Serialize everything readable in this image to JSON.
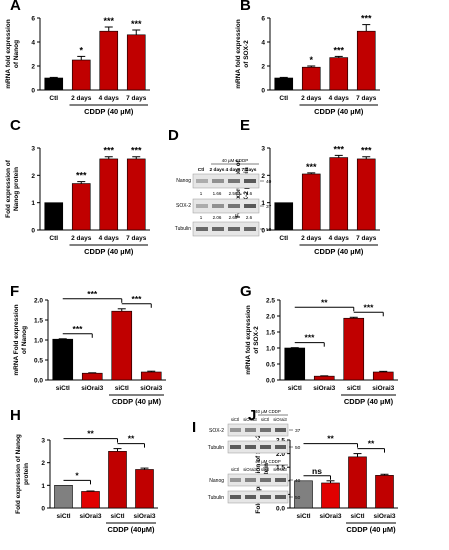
{
  "figure": {
    "colors": {
      "ctl": "#000000",
      "cddp": "#c00000",
      "grey_bar": "#808080",
      "red_bar": "#e00000",
      "maroon": "#8a1010",
      "accent_dark": "#5a0808",
      "blot_bg": "#e6e6e6"
    }
  },
  "chart_data": [
    {
      "panel": "A",
      "type": "bar",
      "ylabel": "mRNA fold expression\nof Nanog",
      "categories": [
        "Ctl",
        "2 days",
        "4 days",
        "7 days"
      ],
      "values": [
        1.0,
        2.5,
        4.9,
        4.6
      ],
      "errors": [
        0.05,
        0.3,
        0.35,
        0.4
      ],
      "significance": [
        "",
        "*",
        "***",
        "***"
      ],
      "ylim": [
        0,
        6
      ],
      "yticks": [
        "0",
        "2",
        "4",
        "6"
      ],
      "group_label": "CDDP (40 µM)",
      "bar_colors": [
        "ctl",
        "cddp",
        "cddp",
        "cddp"
      ]
    },
    {
      "panel": "B",
      "type": "bar",
      "ylabel": "mRNA fold expression\nof SOX-2",
      "categories": [
        "Ctl",
        "2 days",
        "4 days",
        "7 days"
      ],
      "values": [
        1.0,
        1.9,
        2.7,
        4.9
      ],
      "errors": [
        0.05,
        0.1,
        0.1,
        0.55
      ],
      "significance": [
        "",
        "*",
        "***",
        "***"
      ],
      "ylim": [
        0,
        6
      ],
      "yticks": [
        "0",
        "2",
        "4",
        "6"
      ],
      "group_label": "CDDP (40 µM)",
      "bar_colors": [
        "ctl",
        "cddp",
        "cddp",
        "cddp"
      ]
    },
    {
      "panel": "C",
      "type": "bar",
      "ylabel": "Fold expression of\nNanog protein",
      "categories": [
        "Ctl",
        "2 days",
        "4 days",
        "7 days"
      ],
      "values": [
        1.0,
        1.7,
        2.6,
        2.6
      ],
      "errors": [
        0.0,
        0.07,
        0.08,
        0.08
      ],
      "significance": [
        "",
        "***",
        "***",
        "***"
      ],
      "ylim": [
        0,
        3
      ],
      "yticks": [
        "0",
        "1",
        "2",
        "3"
      ],
      "group_label": "CDDP (40 µM)",
      "bar_colors": [
        "ctl",
        "cddp",
        "cddp",
        "cddp"
      ]
    },
    {
      "panel": "E",
      "type": "bar",
      "ylabel": "Fold expression of\nSOX-2 protein",
      "categories": [
        "Ctl",
        "2 days",
        "4 days",
        "7 days"
      ],
      "values": [
        1.0,
        2.05,
        2.65,
        2.6
      ],
      "errors": [
        0.0,
        0.04,
        0.08,
        0.08
      ],
      "significance": [
        "",
        "***",
        "***",
        "***"
      ],
      "ylim": [
        0,
        3
      ],
      "yticks": [
        "0",
        "1",
        "2",
        "3"
      ],
      "group_label": "CDDP (40 µM)",
      "bar_colors": [
        "ctl",
        "cddp",
        "cddp",
        "cddp"
      ]
    },
    {
      "panel": "F",
      "type": "bar",
      "ylabel": "mRNA Fold expression\nof Nanog",
      "categories": [
        "siCtl",
        "siOrai3",
        "siCtl",
        "siOrai3"
      ],
      "values": [
        1.02,
        0.17,
        1.72,
        0.2
      ],
      "errors": [
        0.01,
        0.01,
        0.06,
        0.02
      ],
      "ylim": [
        0,
        2.0
      ],
      "yticks": [
        "0.0",
        "0.5",
        "1.0",
        "1.5",
        "2.0"
      ],
      "group_label": "CDDP (40 µM)",
      "brackets": [
        {
          "from": 0,
          "to": 1,
          "label": "***"
        },
        {
          "from": 0,
          "to": 2,
          "label": "***"
        },
        {
          "from": 2,
          "to": 3,
          "label": "***"
        }
      ],
      "bar_colors": [
        "ctl",
        "cddp",
        "cddp",
        "cddp"
      ]
    },
    {
      "panel": "G",
      "type": "bar",
      "ylabel": "mRNA fold expression\nof SOX-2",
      "categories": [
        "siCtl",
        "siOrai3",
        "siCtl",
        "siOrai3"
      ],
      "values": [
        1.0,
        0.12,
        1.93,
        0.25
      ],
      "errors": [
        0.01,
        0.01,
        0.03,
        0.02
      ],
      "ylim": [
        0,
        2.5
      ],
      "yticks": [
        "0.0",
        "0.5",
        "1.0",
        "1.5",
        "2.0",
        "2.5"
      ],
      "group_label": "CDDP (40 µM)",
      "brackets": [
        {
          "from": 0,
          "to": 1,
          "label": "***"
        },
        {
          "from": 0,
          "to": 2,
          "label": "**"
        },
        {
          "from": 2,
          "to": 3,
          "label": "***"
        }
      ],
      "bar_colors": [
        "ctl",
        "cddp",
        "cddp",
        "cddp"
      ]
    },
    {
      "panel": "H",
      "type": "bar",
      "ylabel": "Fold expression of Nanog\nprotein",
      "categories": [
        "siCtl",
        "siOrai3",
        "siCtl",
        "siOrai3"
      ],
      "values": [
        1.0,
        0.73,
        2.5,
        1.7
      ],
      "errors": [
        0.0,
        0.02,
        0.12,
        0.06
      ],
      "ylim": [
        0,
        3
      ],
      "yticks": [
        "0",
        "1",
        "2",
        "3"
      ],
      "group_label": "CDDP (40µM)",
      "brackets": [
        {
          "from": 0,
          "to": 1,
          "label": "*"
        },
        {
          "from": 0,
          "to": 2,
          "label": "**"
        },
        {
          "from": 2,
          "to": 3,
          "label": "**"
        }
      ],
      "bar_colors": [
        "grey_bar",
        "red_bar",
        "cddp",
        "cddp"
      ]
    },
    {
      "panel": "J",
      "type": "bar",
      "ylabel": "Fold expression of SOX-2\nprotein",
      "categories": [
        "siCtl",
        "siOrai3",
        "siCtl",
        "siOrai3"
      ],
      "values": [
        1.0,
        0.92,
        1.88,
        1.2
      ],
      "errors": [
        0.0,
        0.08,
        0.12,
        0.04
      ],
      "ylim": [
        0,
        2.5
      ],
      "yticks": [
        "0.0",
        "0.5",
        "1.0",
        "1.5",
        "2.0",
        "2.5"
      ],
      "group_label": "CDDP (40 µM)",
      "brackets": [
        {
          "from": 0,
          "to": 1,
          "label": "ns"
        },
        {
          "from": 0,
          "to": 2,
          "label": "**"
        },
        {
          "from": 2,
          "to": 3,
          "label": "**"
        }
      ],
      "bar_colors": [
        "grey_bar",
        "red_bar",
        "cddp",
        "cddp"
      ]
    }
  ],
  "blots": {
    "D": {
      "treatment": "40 µM CDDP",
      "lanes": [
        "Ctl",
        "2 days",
        "4 days",
        "7 days"
      ],
      "rows": [
        "Nanog",
        "SOX-2",
        "Tubulin"
      ],
      "mw": [
        "40",
        "37",
        "50"
      ],
      "ratios_nanog": [
        "1",
        "1.66",
        "2.56",
        "2.6"
      ],
      "ratios_sox2": [
        "1",
        "2.06",
        "2.68",
        "2.6"
      ]
    },
    "I": {
      "treatment": "40 µM CDDP",
      "lanes": [
        "siCtl",
        "siOrai3",
        "siCtl",
        "siOrai3"
      ],
      "rows_top": [
        "SOX-2",
        "Tubulin"
      ],
      "rows_bottom": [
        "Nanog",
        "Tubulin"
      ],
      "mw_top": [
        "37",
        "50"
      ],
      "mw_bottom": [
        "40",
        "50"
      ]
    }
  }
}
